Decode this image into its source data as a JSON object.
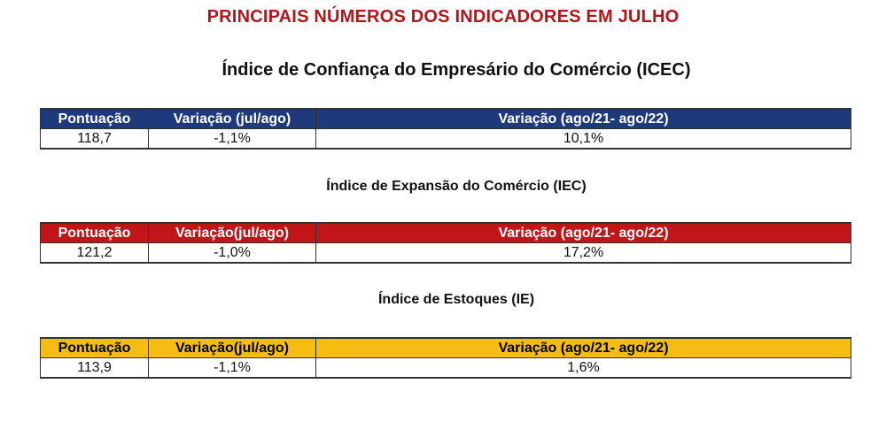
{
  "page_title": "PRINCIPAIS NÚMEROS DOS INDICADORES EM JULHO",
  "sections": [
    {
      "title": "Índice de Confiança do Empresário do Comércio (ICEC)",
      "header_bg": "#1f3a7a",
      "header_fg": "#ffffff",
      "headers": [
        "Pontuação",
        "Variação (jul/ago)",
        "Variação (ago/21- ago/22)"
      ],
      "values": [
        "118,7",
        "-1,1%",
        "10,1%"
      ]
    },
    {
      "title": "Índice de Expansão do Comércio (IEC)",
      "header_bg": "#c0161a",
      "header_fg": "#ffffff",
      "headers": [
        "Pontuação",
        "Variação(jul/ago)",
        "Variação (ago/21- ago/22)"
      ],
      "values": [
        "121,2",
        "-1,0%",
        "17,2%"
      ]
    },
    {
      "title": "Índice de Estoques (IE)",
      "header_bg": "#f5bd12",
      "header_fg": "#000000",
      "headers": [
        "Pontuação",
        "Variação(jul/ago)",
        "Variação (ago/21- ago/22)"
      ],
      "values": [
        "113,9",
        "-1,1%",
        "1,6%"
      ]
    }
  ]
}
